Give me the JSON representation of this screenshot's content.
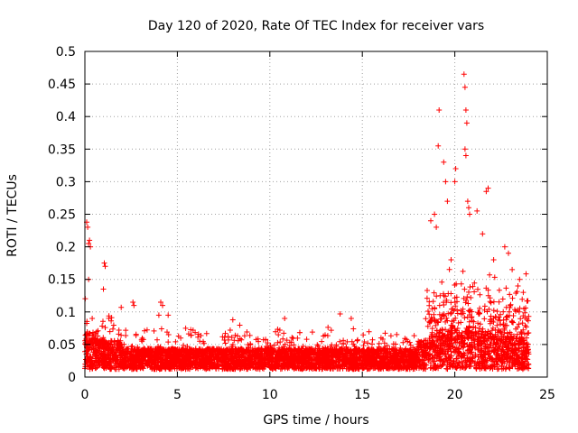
{
  "chart_data": {
    "type": "scatter",
    "title": "Day 120 of 2020, Rate Of TEC Index for receiver vars",
    "xlabel": "GPS time / hours",
    "ylabel": "ROTI / TECUs",
    "xlim": [
      0,
      25
    ],
    "ylim": [
      0,
      0.5
    ],
    "xticks": [
      0,
      5,
      10,
      15,
      20,
      25
    ],
    "yticks": [
      0,
      0.05,
      0.1,
      0.15,
      0.2,
      0.25,
      0.3,
      0.35,
      0.4,
      0.45,
      0.5
    ],
    "grid": true,
    "marker": "+",
    "color": "#ff0000",
    "data_range_hours": [
      0,
      24
    ],
    "series": [
      {
        "name": "ROTI",
        "description_peaks": "notable high points",
        "points": [
          [
            0.1,
            0.238
          ],
          [
            0.15,
            0.23
          ],
          [
            0.2,
            0.205
          ],
          [
            0.25,
            0.21
          ],
          [
            0.3,
            0.2
          ],
          [
            0.2,
            0.15
          ],
          [
            1.05,
            0.175
          ],
          [
            1.1,
            0.17
          ],
          [
            1.0,
            0.135
          ],
          [
            2.6,
            0.115
          ],
          [
            2.65,
            0.11
          ],
          [
            4.1,
            0.115
          ],
          [
            4.2,
            0.11
          ],
          [
            4.0,
            0.095
          ],
          [
            4.5,
            0.095
          ],
          [
            8.0,
            0.088
          ],
          [
            10.8,
            0.09
          ],
          [
            13.8,
            0.097
          ],
          [
            14.4,
            0.09
          ],
          [
            18.7,
            0.24
          ],
          [
            18.9,
            0.25
          ],
          [
            19.0,
            0.23
          ],
          [
            19.1,
            0.355
          ],
          [
            19.15,
            0.41
          ],
          [
            19.4,
            0.33
          ],
          [
            19.5,
            0.3
          ],
          [
            19.6,
            0.27
          ],
          [
            19.8,
            0.18
          ],
          [
            20.0,
            0.3
          ],
          [
            20.05,
            0.32
          ],
          [
            20.5,
            0.465
          ],
          [
            20.55,
            0.445
          ],
          [
            20.6,
            0.41
          ],
          [
            20.65,
            0.39
          ],
          [
            20.55,
            0.35
          ],
          [
            20.6,
            0.34
          ],
          [
            20.7,
            0.27
          ],
          [
            20.75,
            0.26
          ],
          [
            20.8,
            0.25
          ],
          [
            21.2,
            0.255
          ],
          [
            21.5,
            0.22
          ],
          [
            21.7,
            0.285
          ],
          [
            21.8,
            0.29
          ],
          [
            22.1,
            0.18
          ],
          [
            22.7,
            0.2
          ],
          [
            22.9,
            0.19
          ],
          [
            23.1,
            0.165
          ],
          [
            23.5,
            0.15
          ],
          [
            23.7,
            0.13
          ]
        ]
      }
    ]
  }
}
